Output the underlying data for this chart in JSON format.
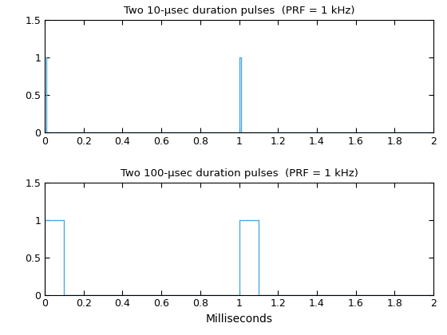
{
  "title1": "Two 10-μsec duration pulses  (PRF = 1 kHz)",
  "title2": "Two 100-μsec duration pulses  (PRF = 1 kHz)",
  "xlabel": "Milliseconds",
  "xlim": [
    0,
    2
  ],
  "ylim": [
    0,
    1.5
  ],
  "yticks": [
    0,
    0.5,
    1,
    1.5
  ],
  "xticks": [
    0,
    0.2,
    0.4,
    0.6,
    0.8,
    1.0,
    1.2,
    1.4,
    1.6,
    1.8,
    2.0
  ],
  "line_color": "#4DAADC",
  "pulse1_duration_ms": 0.01,
  "pulse2_duration_ms": 0.1,
  "prf_ms": 1.0,
  "amplitude": 1.0,
  "total_time_ms": 2.0,
  "fig_width": 5.6,
  "fig_height": 4.2,
  "dpi": 100,
  "bg_color": "#ffffff",
  "title_fontsize": 9.5,
  "xlabel_fontsize": 10,
  "tick_fontsize": 9
}
